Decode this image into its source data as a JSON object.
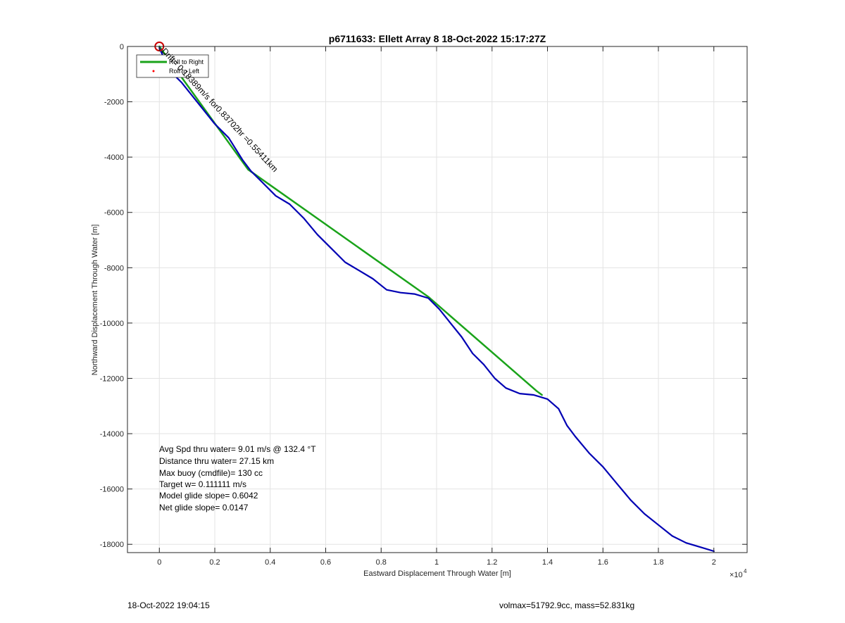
{
  "chart_data": {
    "type": "line",
    "title": "p6711633: Ellett Array 8 18-Oct-2022 15:17:27Z",
    "xlabel": "Eastward Displacement Through Water [m]",
    "ylabel": "Northward Displacement Through Water [m]",
    "x_exponent_label": "×10",
    "x_exponent_power": "4",
    "xlim": [
      -1150,
      21200
    ],
    "ylim": [
      -18300,
      0
    ],
    "x_ticks": [
      0,
      2000,
      4000,
      6000,
      8000,
      10000,
      12000,
      14000,
      16000,
      18000,
      20000
    ],
    "x_tick_labels": [
      "0",
      "0.2",
      "0.4",
      "0.6",
      "0.8",
      "1",
      "1.2",
      "1.4",
      "1.6",
      "1.8",
      "2"
    ],
    "y_ticks": [
      0,
      -2000,
      -4000,
      -6000,
      -8000,
      -10000,
      -12000,
      -14000,
      -16000,
      -18000
    ],
    "y_tick_labels": [
      "0",
      "-2000",
      "-4000",
      "-6000",
      "-8000",
      "-10000",
      "-12000",
      "-14000",
      "-16000",
      "-18000"
    ],
    "grid": true,
    "legend_placement": "top-left",
    "series": [
      {
        "name": "Roll to Right",
        "color": "#1aa31a",
        "x": [
          0,
          3200,
          9700,
          13600,
          13800
        ],
        "y": [
          0,
          -4450,
          -9050,
          -12450,
          -12600
        ]
      },
      {
        "name": "Roll to Left",
        "color": "#ff0000",
        "marker": "dot",
        "x": [],
        "y": []
      },
      {
        "color": "#0000b4",
        "x": [
          0,
          200,
          400,
          800,
          1200,
          1600,
          2000,
          2500,
          3000,
          3300,
          3700,
          4200,
          4700,
          5200,
          5700,
          6200,
          6700,
          7200,
          7700,
          8200,
          8700,
          9200,
          9700,
          10100,
          10500,
          10900,
          11300,
          11700,
          12100,
          12500,
          13000,
          13500,
          14000,
          14400,
          14700,
          15000,
          15500,
          16000,
          16500,
          17000,
          17500,
          18000,
          18500,
          19000,
          19500,
          20000
        ],
        "y": [
          -50,
          -500,
          -900,
          -1300,
          -1800,
          -2300,
          -2800,
          -3300,
          -4100,
          -4500,
          -4900,
          -5400,
          -5700,
          -6200,
          -6800,
          -7300,
          -7800,
          -8100,
          -8400,
          -8800,
          -8900,
          -8950,
          -9100,
          -9500,
          -10000,
          -10500,
          -11100,
          -11500,
          -12000,
          -12350,
          -12550,
          -12600,
          -12750,
          -13100,
          -13700,
          -14100,
          -14700,
          -15200,
          -15800,
          -16400,
          -16900,
          -17300,
          -17700,
          -17950,
          -18100,
          -18250
        ]
      }
    ],
    "annotations": {
      "start_marker": {
        "type": "circle",
        "color": "#cc0000",
        "x": 0,
        "y": 0
      },
      "drift_text": "Drift= 0.18389m/s for0.83702hr =0.55411km",
      "stats": [
        "Avg Spd thru water=  9.01 m/s @ 132.4 °T",
        "Distance thru water= 27.15 km",
        "Max buoy (cmdfile)= 130 cc",
        "Target w= 0.111111 m/s",
        "Model glide slope= 0.6042",
        "Net glide slope= 0.0147"
      ]
    }
  },
  "footer": {
    "timestamp": "18-Oct-2022 19:04:15",
    "vol_mass": "volmax=51792.9cc, mass=52.831kg"
  }
}
